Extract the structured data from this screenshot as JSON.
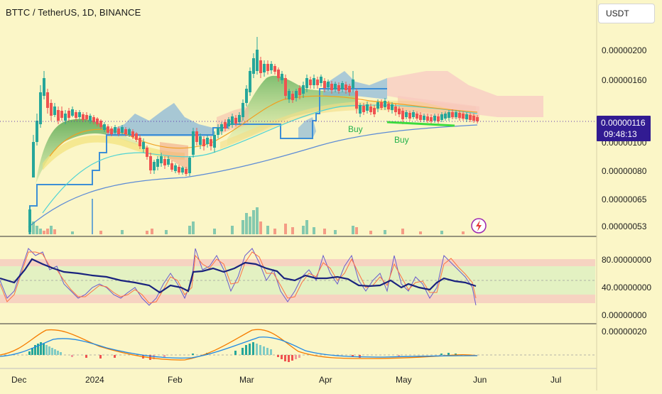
{
  "header": {
    "symbol_title": "BTTC / TetherUS, 1D, BINANCE",
    "currency_button": "USDT"
  },
  "price_axis": {
    "labels": [
      "0.00000200",
      "0.00000160",
      "0.00000100",
      "0.00000080",
      "0.00000065",
      "0.00000053"
    ],
    "current_price": "0.00000116",
    "countdown": "09:48:13"
  },
  "oscillator_axis": {
    "labels": [
      "80.00000000",
      "40.00000000",
      "0.00000000"
    ]
  },
  "macd_axis": {
    "labels": [
      "0.00000020"
    ]
  },
  "time_axis": {
    "labels": [
      "Dec",
      "2024",
      "Feb",
      "Mar",
      "Apr",
      "May",
      "Jun",
      "Jul"
    ]
  },
  "annotations": {
    "buy_labels": [
      "Buy",
      "Buy"
    ]
  },
  "colors": {
    "background": "#fbf6c7",
    "current_price_tag": "#311b92",
    "bull_candle": "#26a69a",
    "bear_candle": "#ef5350",
    "cloud_blue": "#5b9bd5",
    "cloud_pink": "#f8c9c4",
    "stoch_rsi_line": "#1a237e",
    "buy_signal": "#22b14c",
    "lightning_icon": "#9c27b0"
  },
  "chart_data": {
    "type": "line",
    "title": "BTTC / TetherUS, 1D, BINANCE",
    "x_range": [
      "Dec",
      "Jul"
    ],
    "price_ylim": [
      5.3e-07,
      2e-06
    ],
    "price_series_approx": [
      {
        "x": "Dec",
        "y": 4.5e-07
      },
      {
        "x": "mid-Dec",
        "y": 1.4e-06
      },
      {
        "x": "2024",
        "y": 1.25e-06
      },
      {
        "x": "late-Jan",
        "y": 8.5e-07
      },
      {
        "x": "Feb",
        "y": 8.2e-07
      },
      {
        "x": "late-Feb",
        "y": 1.05e-06
      },
      {
        "x": "Mar",
        "y": 2.05e-06
      },
      {
        "x": "mid-Mar",
        "y": 1.5e-06
      },
      {
        "x": "Apr",
        "y": 1.45e-06
      },
      {
        "x": "mid-Apr",
        "y": 1.2e-06
      },
      {
        "x": "May",
        "y": 1.25e-06
      },
      {
        "x": "late-May",
        "y": 1.16e-06
      }
    ],
    "current_price": 1.16e-06
  }
}
